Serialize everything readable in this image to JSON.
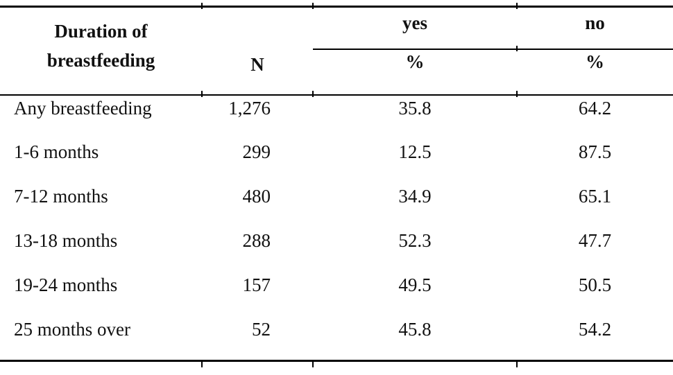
{
  "table": {
    "header": {
      "duration_line1": "Duration of",
      "duration_line2": "breastfeeding",
      "n_label": "N",
      "group_yes": "yes",
      "group_no": "no",
      "pct_yes": "%",
      "pct_no": "%"
    },
    "rows": [
      {
        "label": "Any breastfeeding",
        "n": "1,276",
        "yes_pct": "35.8",
        "no_pct": "64.2"
      },
      {
        "label": "1-6 months",
        "n": "299",
        "yes_pct": "12.5",
        "no_pct": "87.5"
      },
      {
        "label": "7-12 months",
        "n": "480",
        "yes_pct": "34.9",
        "no_pct": "65.1"
      },
      {
        "label": "13-18 months",
        "n": "288",
        "yes_pct": "52.3",
        "no_pct": "47.7"
      },
      {
        "label": "19-24 months",
        "n": "157",
        "yes_pct": "49.5",
        "no_pct": "50.5"
      },
      {
        "label": "25 months over",
        "n": "52",
        "yes_pct": "45.8",
        "no_pct": "54.2"
      }
    ]
  },
  "colors": {
    "text": "#111111",
    "border": "#000000",
    "background": "#ffffff"
  }
}
